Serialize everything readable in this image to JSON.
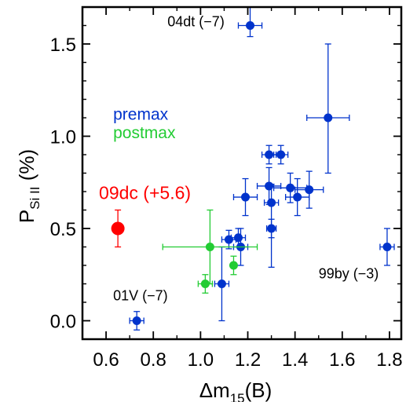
{
  "chart_data": {
    "type": "scatter",
    "xlabel": {
      "main": "Δm",
      "sub": "15",
      "suffix": "(B)"
    },
    "ylabel": {
      "main": "P",
      "sub": "Si II",
      "suffix": " (%)"
    },
    "xlim": [
      0.5,
      1.85
    ],
    "ylim": [
      -0.1,
      1.7
    ],
    "xticks": [
      0.6,
      0.8,
      1.0,
      1.2,
      1.4,
      1.6,
      1.8
    ],
    "xtick_labels": [
      "0.6",
      "0.8",
      "1.0",
      "1.2",
      "1.4",
      "1.6",
      "1.8"
    ],
    "yticks": [
      0.0,
      0.5,
      1.0,
      1.5
    ],
    "ytick_labels": [
      "0.0",
      "0.5",
      "1.0",
      "1.5"
    ],
    "grid": false,
    "legend_position": "left",
    "series": [
      {
        "name": "premax",
        "color": "#0033cc",
        "points": [
          {
            "x": 1.21,
            "y": 1.6,
            "xerr": 0.05,
            "yerr_low": 0.06,
            "yerr_high": 0.1
          },
          {
            "x": 1.54,
            "y": 1.1,
            "xerr": 0.09,
            "yerr_low": 0.3,
            "yerr_high": 0.4
          },
          {
            "x": 1.29,
            "y": 0.9,
            "xerr": 0.03,
            "yerr_low": 0.05,
            "yerr_high": 0.05
          },
          {
            "x": 1.34,
            "y": 0.9,
            "xerr": 0.03,
            "yerr_low": 0.05,
            "yerr_high": 0.05
          },
          {
            "x": 1.29,
            "y": 0.73,
            "xerr": 0.05,
            "yerr_low": 0.1,
            "yerr_high": 0.1
          },
          {
            "x": 1.38,
            "y": 0.72,
            "xerr": 0.07,
            "yerr_low": 0.08,
            "yerr_high": 0.08
          },
          {
            "x": 1.46,
            "y": 0.71,
            "xerr": 0.06,
            "yerr_low": 0.1,
            "yerr_high": 0.1
          },
          {
            "x": 1.41,
            "y": 0.67,
            "xerr": 0.05,
            "yerr_low": 0.1,
            "yerr_high": 0.1
          },
          {
            "x": 1.19,
            "y": 0.67,
            "xerr": 0.05,
            "yerr_low": 0.1,
            "yerr_high": 0.1
          },
          {
            "x": 1.3,
            "y": 0.64,
            "xerr": 0.03,
            "yerr_low": 0.35,
            "yerr_high": 0.1
          },
          {
            "x": 1.3,
            "y": 0.5,
            "xerr": 0.02,
            "yerr_low": 0.05,
            "yerr_high": 0.05
          },
          {
            "x": 1.16,
            "y": 0.45,
            "xerr": 0.03,
            "yerr_low": 0.05,
            "yerr_high": 0.05
          },
          {
            "x": 1.12,
            "y": 0.44,
            "xerr": 0.03,
            "yerr_low": 0.05,
            "yerr_high": 0.05
          },
          {
            "x": 1.17,
            "y": 0.4,
            "xerr": 0.03,
            "yerr_low": 0.1,
            "yerr_high": 0.1
          },
          {
            "x": 1.79,
            "y": 0.4,
            "xerr": 0.03,
            "yerr_low": 0.1,
            "yerr_high": 0.1
          },
          {
            "x": 1.09,
            "y": 0.2,
            "xerr": 0.03,
            "yerr_low": 0.2,
            "yerr_high": 0.2
          },
          {
            "x": 0.73,
            "y": 0.0,
            "xerr": 0.03,
            "yerr_low": 0.05,
            "yerr_high": 0.05
          }
        ]
      },
      {
        "name": "postmax",
        "color": "#22cc33",
        "points": [
          {
            "x": 1.04,
            "y": 0.4,
            "xerr": 0.2,
            "yerr_low": 0.2,
            "yerr_high": 0.2
          },
          {
            "x": 1.14,
            "y": 0.3,
            "xerr": 0.01,
            "yerr_low": 0.05,
            "yerr_high": 0.05
          },
          {
            "x": 1.02,
            "y": 0.2,
            "xerr": 0.03,
            "yerr_low": 0.05,
            "yerr_high": 0.05
          }
        ]
      },
      {
        "name": "09dc",
        "color": "#ff0000",
        "points": [
          {
            "x": 0.65,
            "y": 0.5,
            "xerr": 0.02,
            "yerr_low": 0.1,
            "yerr_high": 0.1
          }
        ]
      }
    ],
    "annotations": [
      {
        "text": "04dt (−7)",
        "x": 0.86,
        "y": 1.595,
        "color": "#000000",
        "size": "normal"
      },
      {
        "text": "09dc (+5.6)",
        "x": 0.57,
        "y": 0.66,
        "color": "#ff0000",
        "size": "big"
      },
      {
        "text": "01V (−7)",
        "x": 0.63,
        "y": 0.11,
        "color": "#000000",
        "size": "normal"
      },
      {
        "text": "99by (−3)",
        "x": 1.5,
        "y": 0.23,
        "color": "#000000",
        "size": "normal"
      }
    ],
    "legend": [
      {
        "text": "premax",
        "color": "#0033cc",
        "x": 0.63,
        "y": 1.09
      },
      {
        "text": "postmax",
        "color": "#22cc33",
        "x": 0.63,
        "y": 0.99
      }
    ]
  }
}
